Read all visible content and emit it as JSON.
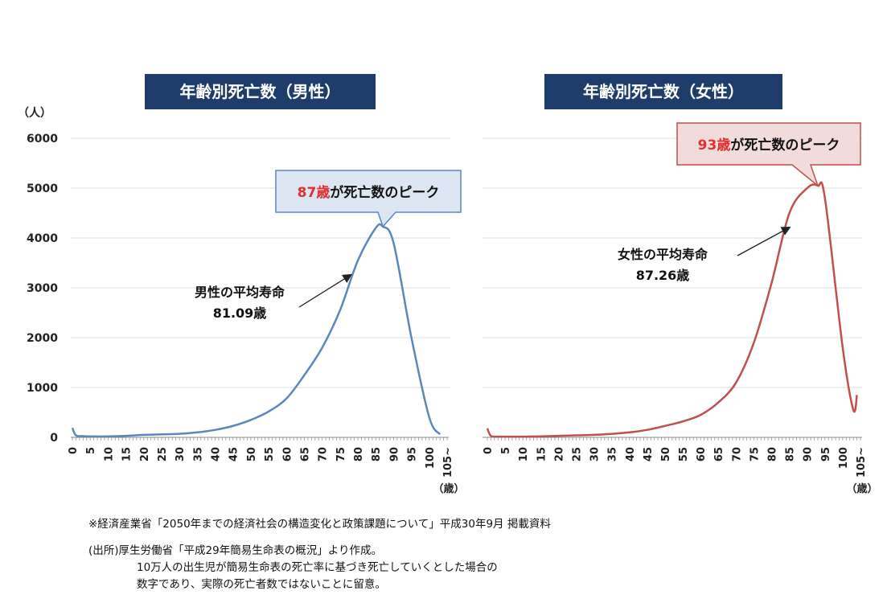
{
  "chart_data": [
    {
      "type": "line",
      "title": "年齢別死亡数（男性）",
      "y_unit": "（人）",
      "x_unit": "（歳）",
      "ylim": [
        0,
        6000
      ],
      "y_ticks": [
        "0",
        "1000",
        "2000",
        "3000",
        "4000",
        "5000",
        "6000"
      ],
      "x_tick_labels": [
        "0",
        "5",
        "10",
        "15",
        "20",
        "25",
        "30",
        "35",
        "40",
        "45",
        "50",
        "55",
        "60",
        "65",
        "70",
        "75",
        "80",
        "85",
        "90",
        "95",
        "100",
        "105~"
      ],
      "grid": true,
      "color": "#5b87bf",
      "series": [
        {
          "x": [
            0,
            1,
            3,
            5,
            10,
            15,
            20,
            25,
            30,
            35,
            40,
            45,
            50,
            55,
            60,
            65,
            70,
            75,
            80,
            85,
            87,
            90,
            95,
            100,
            103
          ],
          "values": [
            190,
            40,
            25,
            20,
            20,
            30,
            50,
            60,
            70,
            100,
            150,
            230,
            350,
            520,
            780,
            1250,
            1800,
            2550,
            3550,
            4200,
            4230,
            3900,
            2000,
            400,
            60
          ]
        }
      ],
      "callout_peak": {
        "highlight": "87歳",
        "text": "が死亡数のピーク",
        "x": 87,
        "y": 4230
      },
      "annotation": {
        "line1": "男性の平均寿命",
        "line2": "81.09歳",
        "arrow_to_x": 80,
        "arrow_to_y": 3300
      }
    },
    {
      "type": "line",
      "title": "年齢別死亡数（女性）",
      "x_unit": "（歳）",
      "ylim": [
        0,
        6000
      ],
      "x_tick_labels": [
        "0",
        "5",
        "10",
        "15",
        "20",
        "25",
        "30",
        "35",
        "40",
        "45",
        "50",
        "55",
        "60",
        "65",
        "70",
        "75",
        "80",
        "85",
        "90",
        "95",
        "100",
        "105~"
      ],
      "grid": true,
      "color": "#c0504d",
      "series": [
        {
          "x": [
            0,
            1,
            3,
            5,
            10,
            15,
            20,
            25,
            30,
            35,
            40,
            45,
            50,
            55,
            60,
            65,
            70,
            75,
            80,
            85,
            90,
            93,
            95,
            100,
            103,
            104
          ],
          "values": [
            180,
            30,
            15,
            15,
            15,
            20,
            30,
            40,
            50,
            70,
            100,
            150,
            230,
            320,
            450,
            700,
            1100,
            1900,
            3100,
            4500,
            5000,
            5050,
            4800,
            1800,
            550,
            850
          ]
        }
      ],
      "callout_peak": {
        "highlight": "93歳",
        "text": "が死亡数のピーク",
        "x": 93,
        "y": 5050
      },
      "annotation": {
        "line1": "女性の平均寿命",
        "line2": "87.26歳",
        "arrow_to_x": 87,
        "arrow_to_y": 4250
      }
    }
  ],
  "notes": {
    "source": "※経済産業省「2050年までの経済社会の構造変化と政策課題について」平成30年9月 掲載資料",
    "origin": "(出所)厚生労働省「平成29年簡易生命表の概況」より作成。",
    "line2": "10万人の出生児が簡易生命表の死亡率に基づき死亡していくとした場合の",
    "line3": "数字であり、実際の死亡者数ではないことに留意。"
  }
}
